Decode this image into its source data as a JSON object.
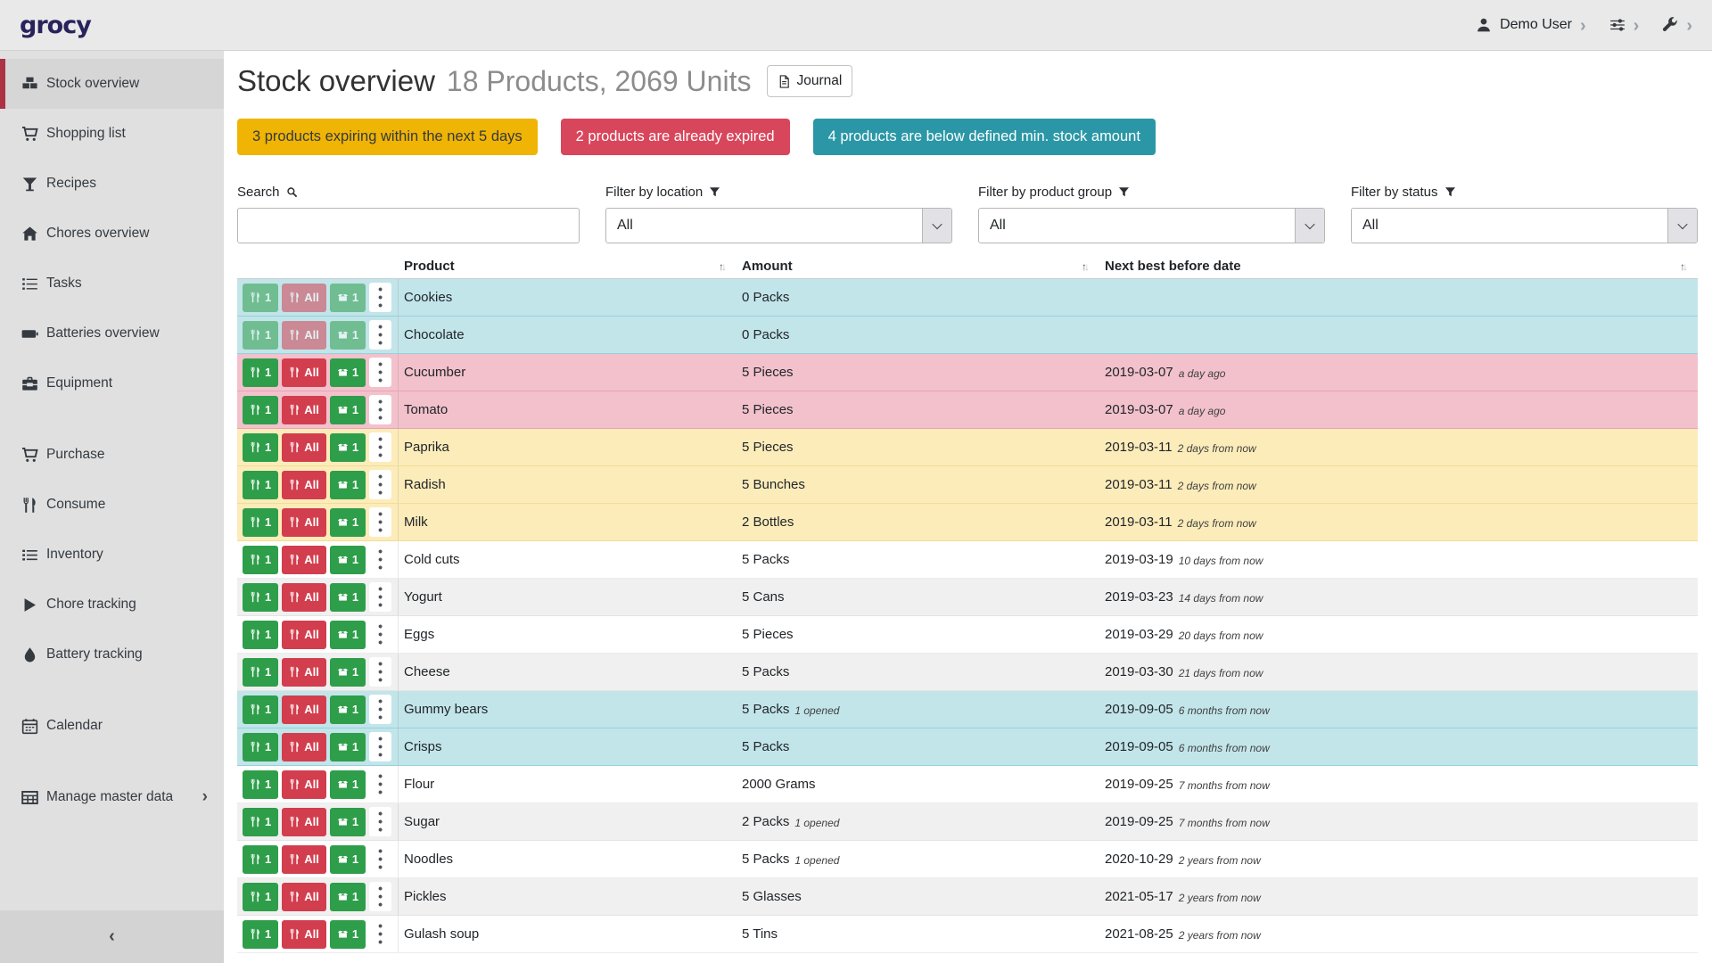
{
  "colors": {
    "sidebar_accent": "#ac3143",
    "logo": "#29235c",
    "badge_warning": "#f0b404",
    "badge_danger": "#d8465c",
    "badge_info": "#2b97a6",
    "row_below_min": "#c2e5ea",
    "row_expired": "#f2c1cc",
    "row_expiring": "#fcecba",
    "button_green": "#2e9e4a",
    "button_red": "#d23e4e"
  },
  "navbar": {
    "logo": "grocy",
    "user": {
      "label": "Demo User",
      "icon": "user-icon"
    },
    "menus": [
      {
        "icon": "sliders-icon"
      },
      {
        "icon": "wrench-icon"
      }
    ]
  },
  "sidebar": {
    "items": [
      {
        "label": "Stock overview",
        "icon": "boxes-icon",
        "active": true,
        "group": 1
      },
      {
        "label": "Shopping list",
        "icon": "shopping-cart-icon",
        "active": false,
        "group": 1
      },
      {
        "label": "Recipes",
        "icon": "cocktail-icon",
        "active": false,
        "group": 1
      },
      {
        "label": "Chores overview",
        "icon": "home-icon",
        "active": false,
        "group": 1
      },
      {
        "label": "Tasks",
        "icon": "tasks-icon",
        "active": false,
        "group": 1
      },
      {
        "label": "Batteries overview",
        "icon": "battery-icon",
        "active": false,
        "group": 1
      },
      {
        "label": "Equipment",
        "icon": "toolbox-icon",
        "active": false,
        "group": 1
      },
      {
        "label": "Purchase",
        "icon": "cart-icon",
        "active": false,
        "group": 2
      },
      {
        "label": "Consume",
        "icon": "utensils-icon",
        "active": false,
        "group": 2
      },
      {
        "label": "Inventory",
        "icon": "list-icon",
        "active": false,
        "group": 2
      },
      {
        "label": "Chore tracking",
        "icon": "play-icon",
        "active": false,
        "group": 2
      },
      {
        "label": "Battery tracking",
        "icon": "flame-icon",
        "active": false,
        "group": 2
      },
      {
        "label": "Calendar",
        "icon": "calendar-icon",
        "active": false,
        "group": 3
      },
      {
        "label": "Manage master data",
        "icon": "table-icon",
        "active": false,
        "group": 4,
        "chevron": true
      }
    ]
  },
  "header": {
    "title": "Stock overview",
    "subtitle": "18 Products, 2069 Units",
    "journal_label": "Journal"
  },
  "badges": [
    {
      "text": "3 products expiring within the next 5 days"
    },
    {
      "text": "2 products are already expired"
    },
    {
      "text": "4 products are below defined min. stock amount"
    }
  ],
  "filters": {
    "search_label": "Search",
    "search_value": "",
    "location_label": "Filter by location",
    "location_value": "All",
    "product_group_label": "Filter by product group",
    "product_group_value": "All",
    "status_label": "Filter by status",
    "status_value": "All"
  },
  "table": {
    "columns": [
      "Product",
      "Amount",
      "Next best before date"
    ],
    "row_buttons": {
      "consume_one": "1",
      "consume_all": "All",
      "open_one": "1"
    },
    "rows": [
      {
        "product": "Cookies",
        "amount": "0 Packs",
        "amount_note": "",
        "date": "",
        "date_note": "",
        "status": "below-min",
        "disabled": true
      },
      {
        "product": "Chocolate",
        "amount": "0 Packs",
        "amount_note": "",
        "date": "",
        "date_note": "",
        "status": "below-min",
        "disabled": true
      },
      {
        "product": "Cucumber",
        "amount": "5 Pieces",
        "amount_note": "",
        "date": "2019-03-07",
        "date_note": "a day ago",
        "status": "expired",
        "disabled": false
      },
      {
        "product": "Tomato",
        "amount": "5 Pieces",
        "amount_note": "",
        "date": "2019-03-07",
        "date_note": "a day ago",
        "status": "expired",
        "disabled": false
      },
      {
        "product": "Paprika",
        "amount": "5 Pieces",
        "amount_note": "",
        "date": "2019-03-11",
        "date_note": "2 days from now",
        "status": "expiring",
        "disabled": false
      },
      {
        "product": "Radish",
        "amount": "5 Bunches",
        "amount_note": "",
        "date": "2019-03-11",
        "date_note": "2 days from now",
        "status": "expiring",
        "disabled": false
      },
      {
        "product": "Milk",
        "amount": "2 Bottles",
        "amount_note": "",
        "date": "2019-03-11",
        "date_note": "2 days from now",
        "status": "expiring",
        "disabled": false
      },
      {
        "product": "Cold cuts",
        "amount": "5 Packs",
        "amount_note": "",
        "date": "2019-03-19",
        "date_note": "10 days from now",
        "status": "none",
        "disabled": false
      },
      {
        "product": "Yogurt",
        "amount": "5 Cans",
        "amount_note": "",
        "date": "2019-03-23",
        "date_note": "14 days from now",
        "status": "none",
        "disabled": false
      },
      {
        "product": "Eggs",
        "amount": "5 Pieces",
        "amount_note": "",
        "date": "2019-03-29",
        "date_note": "20 days from now",
        "status": "none",
        "disabled": false
      },
      {
        "product": "Cheese",
        "amount": "5 Packs",
        "amount_note": "",
        "date": "2019-03-30",
        "date_note": "21 days from now",
        "status": "none",
        "disabled": false
      },
      {
        "product": "Gummy bears",
        "amount": "5 Packs",
        "amount_note": "1 opened",
        "date": "2019-09-05",
        "date_note": "6 months from now",
        "status": "below-min",
        "disabled": false
      },
      {
        "product": "Crisps",
        "amount": "5 Packs",
        "amount_note": "",
        "date": "2019-09-05",
        "date_note": "6 months from now",
        "status": "below-min",
        "disabled": false
      },
      {
        "product": "Flour",
        "amount": "2000 Grams",
        "amount_note": "",
        "date": "2019-09-25",
        "date_note": "7 months from now",
        "status": "none",
        "disabled": false
      },
      {
        "product": "Sugar",
        "amount": "2 Packs",
        "amount_note": "1 opened",
        "date": "2019-09-25",
        "date_note": "7 months from now",
        "status": "none",
        "disabled": false
      },
      {
        "product": "Noodles",
        "amount": "5 Packs",
        "amount_note": "1 opened",
        "date": "2020-10-29",
        "date_note": "2 years from now",
        "status": "none",
        "disabled": false
      },
      {
        "product": "Pickles",
        "amount": "5 Glasses",
        "amount_note": "",
        "date": "2021-05-17",
        "date_note": "2 years from now",
        "status": "none",
        "disabled": false
      },
      {
        "product": "Gulash soup",
        "amount": "5 Tins",
        "amount_note": "",
        "date": "2021-08-25",
        "date_note": "2 years from now",
        "status": "none",
        "disabled": false
      }
    ]
  }
}
